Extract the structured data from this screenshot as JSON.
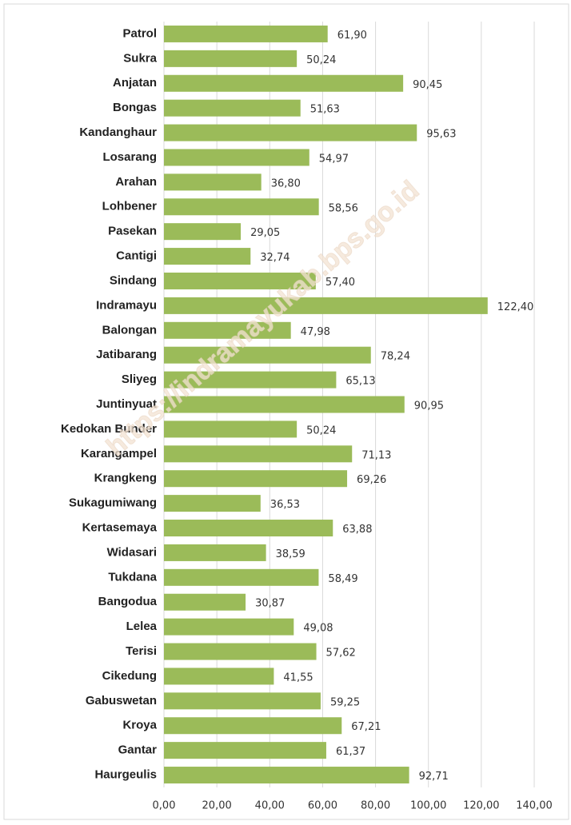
{
  "chart_data": {
    "type": "bar",
    "orientation": "horizontal",
    "watermark": "https://indramayukab.bps.go.id",
    "categories": [
      "Patrol",
      "Sukra",
      "Anjatan",
      "Bongas",
      "Kandanghaur",
      "Losarang",
      "Arahan",
      "Lohbener",
      "Pasekan",
      "Cantigi",
      "Sindang",
      "Indramayu",
      "Balongan",
      "Jatibarang",
      "Sliyeg",
      "Juntinyuat",
      "Kedokan Bunder",
      "Karangampel",
      "Krangkeng",
      "Sukagumiwang",
      "Kertasemaya",
      "Widasari",
      "Tukdana",
      "Bangodua",
      "Lelea",
      "Terisi",
      "Cikedung",
      "Gabuswetan",
      "Kroya",
      "Gantar",
      "Haurgeulis"
    ],
    "values": [
      61.9,
      50.24,
      90.45,
      51.63,
      95.63,
      54.97,
      36.8,
      58.56,
      29.05,
      32.74,
      57.4,
      122.4,
      47.98,
      78.24,
      65.13,
      90.95,
      50.24,
      71.13,
      69.26,
      36.53,
      63.88,
      38.59,
      58.49,
      30.87,
      49.08,
      57.62,
      41.55,
      59.25,
      67.21,
      61.37,
      92.71
    ],
    "value_labels": [
      "61,90",
      "50,24",
      "90,45",
      "51,63",
      "95,63",
      "54,97",
      "36,80",
      "58,56",
      "29,05",
      "32,74",
      "57,40",
      "122,40",
      "47,98",
      "78,24",
      "65,13",
      "90,95",
      "50,24",
      "71,13",
      "69,26",
      "36,53",
      "63,88",
      "38,59",
      "58,49",
      "30,87",
      "49,08",
      "57,62",
      "41,55",
      "59,25",
      "67,21",
      "61,37",
      "92,71"
    ],
    "color": "#9bbb59",
    "xlim": [
      0,
      140
    ],
    "xticks": [
      {
        "value": 0,
        "label": "0,00"
      },
      {
        "value": 20,
        "label": "20,00"
      },
      {
        "value": 40,
        "label": "40,00"
      },
      {
        "value": 60,
        "label": "60,00"
      },
      {
        "value": 80,
        "label": "80,00"
      },
      {
        "value": 100,
        "label": "100,00"
      },
      {
        "value": 120,
        "label": "120,00"
      },
      {
        "value": 140,
        "label": "140,00"
      }
    ],
    "grid": true
  }
}
